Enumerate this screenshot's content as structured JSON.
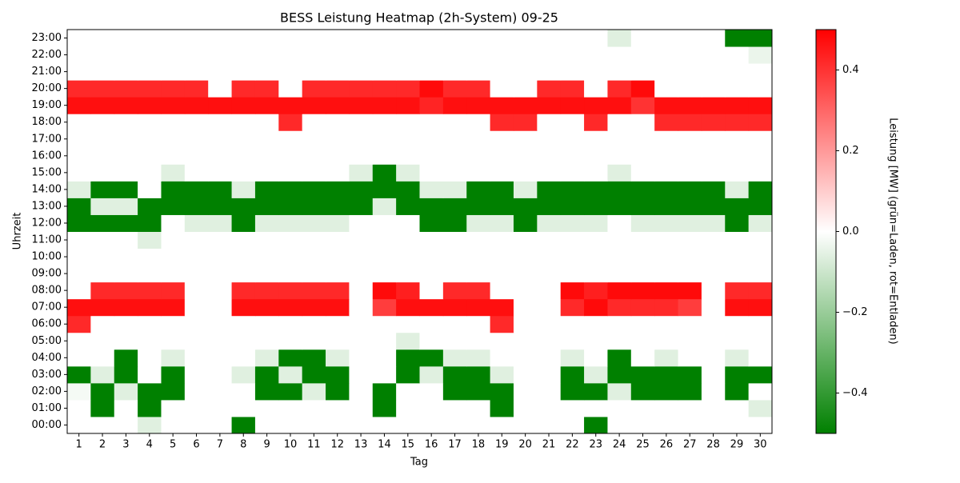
{
  "chart_data": {
    "type": "heatmap",
    "title": "BESS Leistung Heatmap (2h-System) 09-25",
    "xlabel": "Tag",
    "ylabel": "Uhrzeit",
    "x": [
      "1",
      "2",
      "3",
      "4",
      "5",
      "6",
      "7",
      "8",
      "9",
      "10",
      "11",
      "12",
      "13",
      "14",
      "15",
      "16",
      "17",
      "18",
      "19",
      "20",
      "21",
      "22",
      "23",
      "24",
      "25",
      "26",
      "27",
      "28",
      "29",
      "30"
    ],
    "y": [
      "00:00",
      "01:00",
      "02:00",
      "03:00",
      "04:00",
      "05:00",
      "06:00",
      "07:00",
      "08:00",
      "09:00",
      "10:00",
      "11:00",
      "12:00",
      "13:00",
      "14:00",
      "15:00",
      "16:00",
      "17:00",
      "18:00",
      "19:00",
      "20:00",
      "21:00",
      "22:00",
      "23:00"
    ],
    "values": [
      [
        0,
        0,
        0,
        -0.06,
        0,
        0,
        0,
        -0.5,
        0,
        0,
        0,
        0,
        0,
        0,
        0,
        0,
        0,
        0,
        0,
        0,
        0,
        0,
        -0.5,
        0,
        0,
        0,
        0,
        0,
        0,
        0
      ],
      [
        0,
        -0.5,
        0,
        -0.5,
        0,
        0,
        0,
        0,
        0,
        0,
        0,
        0,
        0,
        -0.5,
        0,
        0,
        0,
        0,
        -0.5,
        0,
        0,
        0,
        0,
        0,
        0,
        0,
        0,
        0,
        0,
        -0.06
      ],
      [
        -0.02,
        -0.5,
        -0.06,
        -0.5,
        -0.5,
        0,
        0,
        0,
        -0.5,
        -0.5,
        -0.06,
        -0.5,
        0,
        -0.5,
        0,
        0,
        -0.5,
        -0.5,
        -0.5,
        0,
        0,
        -0.5,
        -0.5,
        -0.06,
        -0.5,
        -0.5,
        -0.5,
        0,
        -0.5,
        0
      ],
      [
        -0.5,
        -0.06,
        -0.5,
        0,
        -0.5,
        0,
        0,
        -0.06,
        -0.5,
        -0.06,
        -0.5,
        -0.5,
        0,
        0,
        -0.5,
        -0.06,
        -0.5,
        -0.5,
        -0.06,
        0,
        0,
        -0.5,
        -0.06,
        -0.5,
        -0.5,
        -0.5,
        -0.5,
        0,
        -0.5,
        -0.5
      ],
      [
        0,
        0,
        -0.5,
        0,
        -0.06,
        0,
        0,
        0,
        -0.06,
        -0.5,
        -0.5,
        -0.06,
        0,
        0,
        -0.5,
        -0.5,
        -0.06,
        -0.06,
        0,
        0,
        0,
        -0.06,
        0,
        -0.5,
        0,
        -0.06,
        0,
        0,
        -0.06,
        0
      ],
      [
        0,
        0,
        0,
        0,
        0,
        0,
        0,
        0,
        0,
        0,
        0,
        0,
        0,
        0,
        -0.06,
        0,
        0,
        0,
        0,
        0,
        0,
        0,
        0,
        0,
        0,
        0,
        0,
        0,
        0,
        0
      ],
      [
        0.42,
        0,
        0,
        0,
        0,
        0,
        0,
        0,
        0,
        0,
        0,
        0,
        0,
        0,
        0,
        0,
        0,
        0,
        0.42,
        0,
        0,
        0,
        0,
        0,
        0,
        0,
        0,
        0,
        0,
        0
      ],
      [
        0.47,
        0.47,
        0.47,
        0.47,
        0.47,
        0,
        0,
        0.47,
        0.47,
        0.47,
        0.47,
        0.47,
        0,
        0.38,
        0.47,
        0.47,
        0.47,
        0.47,
        0.47,
        0,
        0,
        0.42,
        0.48,
        0.42,
        0.42,
        0.42,
        0.38,
        0,
        0.47,
        0.47
      ],
      [
        0,
        0.42,
        0.42,
        0.42,
        0.42,
        0,
        0,
        0.42,
        0.42,
        0.42,
        0.42,
        0.42,
        0,
        0.48,
        0.44,
        0,
        0.42,
        0.42,
        0,
        0,
        0,
        0.48,
        0.44,
        0.48,
        0.48,
        0.48,
        0.48,
        0,
        0.42,
        0.42
      ],
      [
        0,
        0,
        0,
        0,
        0,
        0,
        0,
        0,
        0,
        0,
        0,
        0,
        0,
        0,
        0,
        0,
        0,
        0,
        0,
        0,
        0,
        0,
        0,
        0,
        0,
        0,
        0,
        0,
        0,
        0
      ],
      [
        0,
        0,
        0,
        0,
        0,
        0,
        0,
        0,
        0,
        0,
        0,
        0,
        0,
        0,
        0,
        0,
        0,
        0,
        0,
        0,
        0,
        0,
        0,
        0,
        0,
        0,
        0,
        0,
        0,
        0
      ],
      [
        0,
        0,
        0,
        -0.06,
        0,
        0,
        0,
        0,
        0,
        0,
        0,
        0,
        0,
        0,
        0,
        0,
        0,
        0,
        0,
        0,
        0,
        0,
        0,
        0,
        0,
        0,
        0,
        0,
        0,
        0
      ],
      [
        -0.5,
        -0.5,
        -0.5,
        -0.5,
        0,
        -0.06,
        -0.06,
        -0.5,
        -0.06,
        -0.06,
        -0.06,
        -0.06,
        0,
        0,
        0,
        -0.5,
        -0.5,
        -0.06,
        -0.06,
        -0.5,
        -0.06,
        -0.06,
        -0.06,
        0,
        -0.06,
        -0.06,
        -0.06,
        -0.06,
        -0.5,
        -0.06
      ],
      [
        -0.5,
        -0.06,
        -0.06,
        -0.5,
        -0.5,
        -0.5,
        -0.5,
        -0.5,
        -0.5,
        -0.5,
        -0.5,
        -0.5,
        -0.5,
        -0.06,
        -0.5,
        -0.5,
        -0.5,
        -0.5,
        -0.5,
        -0.5,
        -0.5,
        -0.5,
        -0.5,
        -0.5,
        -0.5,
        -0.5,
        -0.5,
        -0.5,
        -0.5,
        -0.5
      ],
      [
        -0.06,
        -0.5,
        -0.5,
        0,
        -0.5,
        -0.5,
        -0.5,
        -0.06,
        -0.5,
        -0.5,
        -0.5,
        -0.5,
        -0.5,
        -0.5,
        -0.5,
        -0.06,
        -0.06,
        -0.5,
        -0.5,
        -0.06,
        -0.5,
        -0.5,
        -0.5,
        -0.5,
        -0.5,
        -0.5,
        -0.5,
        -0.5,
        -0.06,
        -0.5
      ],
      [
        0,
        0,
        0,
        0,
        -0.06,
        0,
        0,
        0,
        0,
        0,
        0,
        0,
        -0.06,
        -0.5,
        -0.06,
        0,
        0,
        0,
        0,
        0,
        0,
        0,
        0,
        -0.06,
        0,
        0,
        0,
        0,
        0,
        0
      ],
      [
        0,
        0,
        0,
        0,
        0,
        0,
        0,
        0,
        0,
        0,
        0,
        0,
        0,
        0,
        0,
        0,
        0,
        0,
        0,
        0,
        0,
        0,
        0,
        0,
        0,
        0,
        0,
        0,
        0,
        0
      ],
      [
        0,
        0,
        0,
        0,
        0,
        0,
        0,
        0,
        0,
        0,
        0,
        0,
        0,
        0,
        0,
        0,
        0,
        0,
        0,
        0,
        0,
        0,
        0,
        0,
        0,
        0,
        0,
        0,
        0,
        0
      ],
      [
        0,
        0,
        0,
        0,
        0,
        0,
        0,
        0,
        0,
        0.42,
        0,
        0,
        0,
        0,
        0,
        0,
        0,
        0,
        0.42,
        0.42,
        0,
        0,
        0.42,
        0,
        0,
        0.42,
        0.42,
        0.42,
        0.42,
        0.42
      ],
      [
        0.47,
        0.47,
        0.47,
        0.47,
        0.47,
        0.47,
        0.47,
        0.47,
        0.47,
        0.47,
        0.47,
        0.47,
        0.47,
        0.47,
        0.47,
        0.43,
        0.47,
        0.47,
        0.47,
        0.47,
        0.47,
        0.47,
        0.47,
        0.47,
        0.4,
        0.47,
        0.47,
        0.47,
        0.47,
        0.47
      ],
      [
        0.42,
        0.42,
        0.42,
        0.42,
        0.42,
        0.42,
        0,
        0.42,
        0.42,
        0,
        0.42,
        0.42,
        0.42,
        0.42,
        0.42,
        0.48,
        0.42,
        0.42,
        0,
        0,
        0.42,
        0.42,
        0,
        0.42,
        0.48,
        0,
        0,
        0,
        0,
        0
      ],
      [
        0,
        0,
        0,
        0,
        0,
        0,
        0,
        0,
        0,
        0,
        0,
        0,
        0,
        0,
        0,
        0,
        0,
        0,
        0,
        0,
        0,
        0,
        0,
        0,
        0,
        0,
        0,
        0,
        0,
        0
      ],
      [
        0,
        0,
        0,
        0,
        0,
        0,
        0,
        0,
        0,
        0,
        0,
        0,
        0,
        0,
        0,
        0,
        0,
        0,
        0,
        0,
        0,
        0,
        0,
        0,
        0,
        0,
        0,
        0,
        0,
        -0.04
      ],
      [
        0,
        0,
        0,
        0,
        0,
        0,
        0,
        0,
        0,
        0,
        0,
        0,
        0,
        0,
        0,
        0,
        0,
        0,
        0,
        0,
        0,
        0,
        0,
        -0.06,
        0,
        0,
        0,
        0,
        -0.5,
        -0.5
      ]
    ],
    "colors": [
      "#008000",
      "#ffffff",
      "#ff0000"
    ],
    "colorbar_label": "Leistung [MW] (grün=Laden, rot=Entladen)",
    "clim": [
      -0.5,
      0.5
    ],
    "cticks": [
      {
        "value": -0.4,
        "label": "−0.4"
      },
      {
        "value": -0.2,
        "label": "−0.2"
      },
      {
        "value": 0,
        "label": "0.0"
      },
      0.2,
      0.4
    ]
  }
}
